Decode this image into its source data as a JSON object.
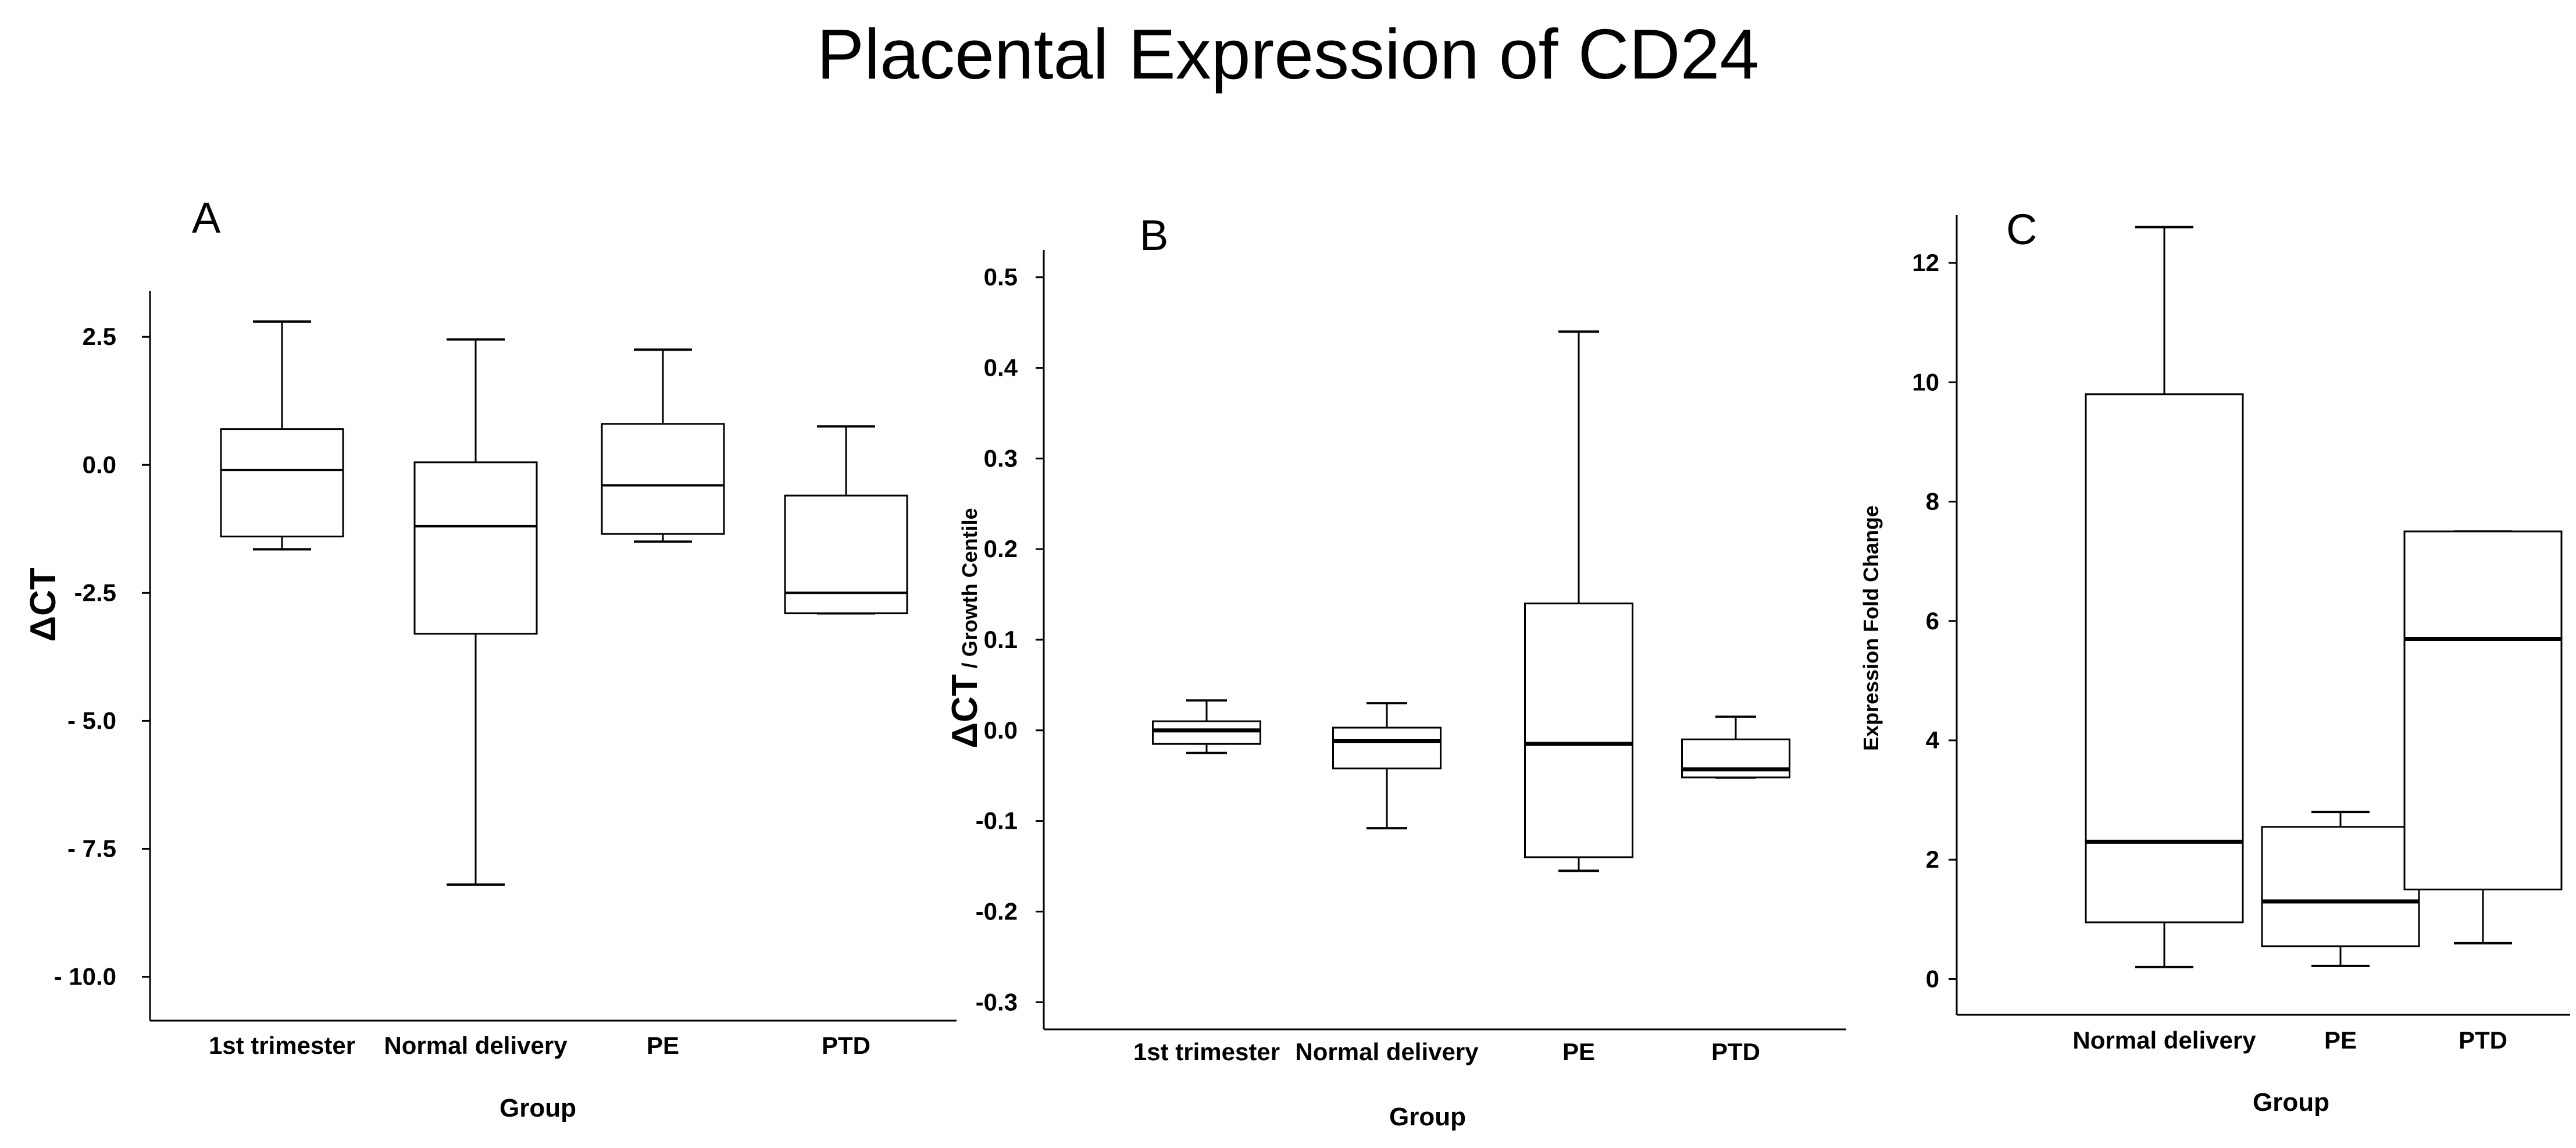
{
  "figure_title": "Placental Expression of CD24",
  "chart_data": [
    {
      "type": "box",
      "panel": "A",
      "title": "A",
      "xlabel": "Group",
      "ylabel": "ΔCT",
      "ylim": [
        -10.8,
        3.4
      ],
      "yticks": [
        2.5,
        0.0,
        -2.5,
        -5.0,
        -7.5,
        -10.0
      ],
      "ytick_labels": [
        "2.5",
        "0.0",
        "-2.5",
        "- 5.0",
        "- 7.5",
        "- 10.0"
      ],
      "categories": [
        "1st trimester",
        "Normal delivery",
        "PE",
        "PTD"
      ],
      "boxes": [
        {
          "min": -1.65,
          "q1": -1.4,
          "median": -0.1,
          "q3": 0.7,
          "max": 2.8
        },
        {
          "min": -8.2,
          "q1": -3.3,
          "median": -1.2,
          "q3": 0.05,
          "max": 2.45
        },
        {
          "min": -1.5,
          "q1": -1.35,
          "median": -0.4,
          "q3": 0.8,
          "max": 2.25
        },
        {
          "min": -2.9,
          "q1": -2.9,
          "median": -2.5,
          "q3": -0.6,
          "max": 0.75
        }
      ]
    },
    {
      "type": "box",
      "panel": "B",
      "title": "B",
      "xlabel": "Group",
      "ylabel": "ΔCT",
      "ylabel_suffix": " / Growth Centile",
      "ylim": [
        -0.33,
        0.53
      ],
      "yticks": [
        0.5,
        0.4,
        0.3,
        0.2,
        0.1,
        0.0,
        -0.1,
        -0.2,
        -0.3
      ],
      "ytick_labels": [
        "0.5",
        "0.4",
        "0.3",
        "0.2",
        "0.1",
        "0.0",
        "-0.1",
        "-0.2",
        "-0.3"
      ],
      "categories": [
        "1st trimester",
        "Normal delivery",
        "PE",
        "PTD"
      ],
      "boxes": [
        {
          "min": -0.025,
          "q1": -0.015,
          "median": 0.0,
          "q3": 0.01,
          "max": 0.033
        },
        {
          "min": -0.108,
          "q1": -0.042,
          "median": -0.012,
          "q3": 0.003,
          "max": 0.03
        },
        {
          "min": -0.155,
          "q1": -0.14,
          "median": -0.015,
          "q3": 0.14,
          "max": 0.44
        },
        {
          "min": -0.052,
          "q1": -0.052,
          "median": -0.043,
          "q3": -0.01,
          "max": 0.015
        }
      ]
    },
    {
      "type": "box",
      "panel": "C",
      "title": "C",
      "xlabel": "Group",
      "ylabel": "Expression Fold Change",
      "ylim": [
        -0.6,
        12.8
      ],
      "yticks": [
        12,
        10,
        8,
        6,
        4,
        2,
        0
      ],
      "ytick_labels": [
        "12",
        "10",
        "8",
        "6",
        "4",
        "2",
        "0"
      ],
      "categories": [
        "Normal delivery",
        "PE",
        "PTD"
      ],
      "boxes": [
        {
          "min": 0.2,
          "q1": 0.95,
          "median": 2.3,
          "q3": 9.8,
          "max": 12.6
        },
        {
          "min": 0.22,
          "q1": 0.55,
          "median": 1.3,
          "q3": 2.55,
          "max": 2.8
        },
        {
          "min": 0.6,
          "q1": 1.5,
          "median": 5.7,
          "q3": 7.5,
          "max": 7.5
        }
      ]
    }
  ]
}
